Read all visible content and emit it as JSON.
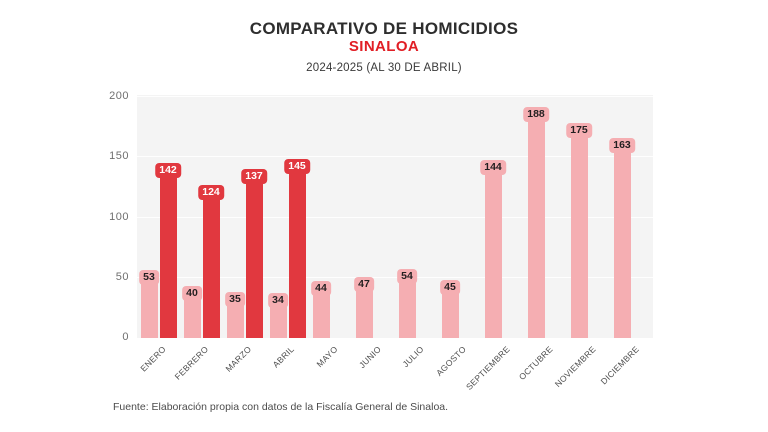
{
  "header": {
    "title": "COMPARATIVO DE HOMICIDIOS",
    "subtitle": "SINALOA",
    "period": "2024-2025 (AL 30 DE ABRIL)"
  },
  "chart_data": {
    "type": "bar",
    "title": "COMPARATIVO DE HOMICIDIOS",
    "subtitle": "SINALOA",
    "period_label": "2024-2025 (AL 30 DE ABRIL)",
    "categories": [
      "ENERO",
      "FEBRERO",
      "MARZO",
      "ABRIL",
      "MAYO",
      "JUNIO",
      "JULIO",
      "AGOSTO",
      "SEPTIEMBRE",
      "OCTUBRE",
      "NOVIEMBRE",
      "DICIEMBRE"
    ],
    "series": [
      {
        "name": "2024",
        "color": "#f5aeb2",
        "label_color": "#231f20",
        "values": [
          53,
          40,
          35,
          34,
          44,
          47,
          54,
          45,
          144,
          188,
          175,
          163
        ]
      },
      {
        "name": "2025",
        "color": "#e1383f",
        "label_color": "#ffffff",
        "values": [
          142,
          124,
          137,
          145,
          null,
          null,
          null,
          null,
          null,
          null,
          null,
          null
        ]
      }
    ],
    "xlabel": "",
    "ylabel": "",
    "ylim": [
      0,
      200
    ],
    "yticks": [
      0,
      50,
      100,
      150,
      200
    ],
    "grid": true,
    "legend": "none",
    "value_labels": "on",
    "plot_background": "#f4f4f4"
  },
  "footer": {
    "source": "Fuente: Elaboración propia con datos de la Fiscalía General de Sinaloa."
  }
}
